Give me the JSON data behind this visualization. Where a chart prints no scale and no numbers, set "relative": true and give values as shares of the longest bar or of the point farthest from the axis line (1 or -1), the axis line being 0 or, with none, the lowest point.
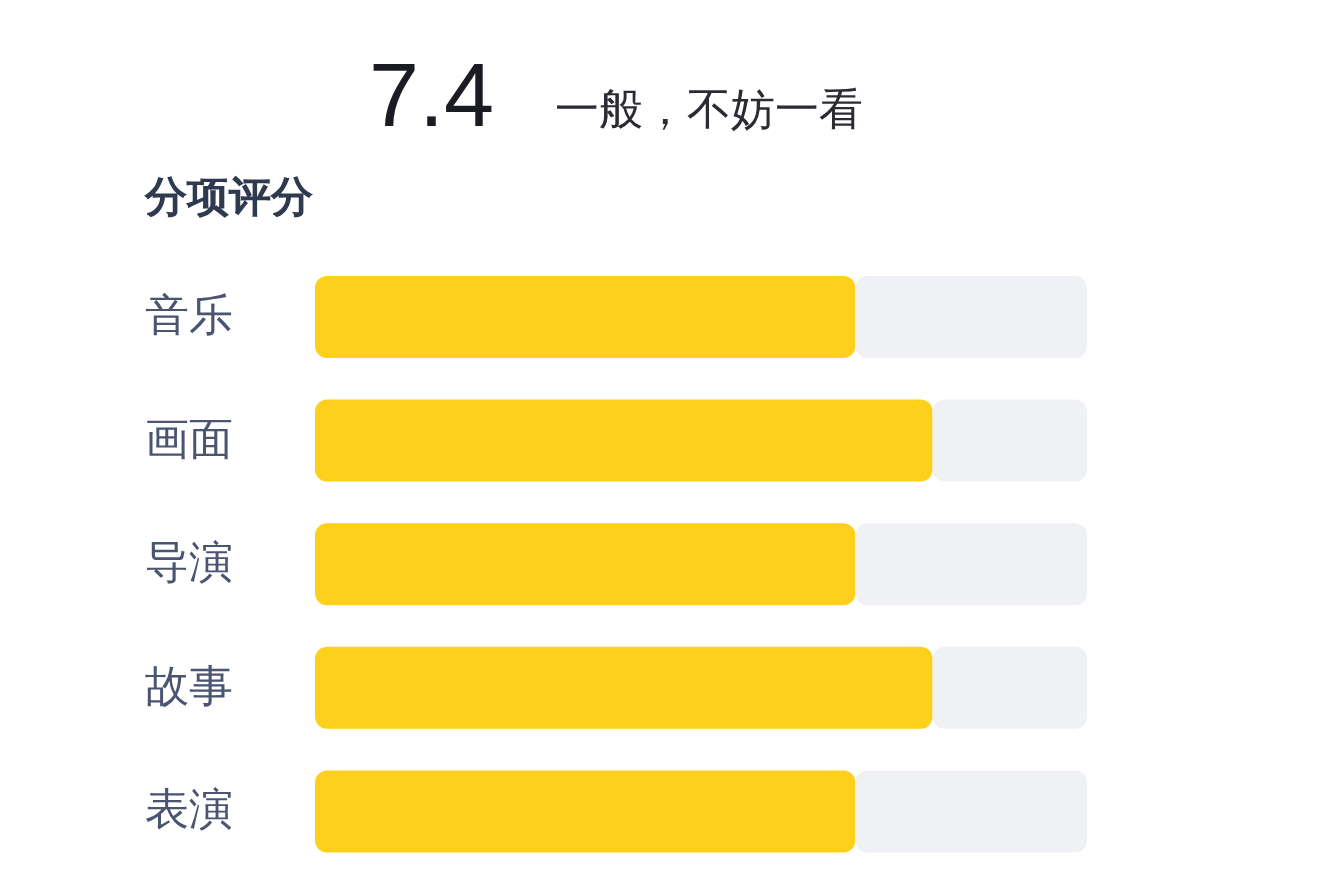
{
  "chart_data": {
    "type": "bar",
    "orientation": "horizontal",
    "stacked": true,
    "relative": true,
    "title": "7.4",
    "subtitle": "一般，不妨一看",
    "annotations": [
      "分项评分"
    ],
    "categories": [
      "音乐",
      "画面",
      "导演",
      "故事",
      "表演"
    ],
    "series": [
      {
        "color": "#fed01c",
        "values": [
          0.7,
          0.8,
          0.7,
          0.8,
          0.7
        ]
      },
      {
        "color": "#eff1f5",
        "values": [
          0.3,
          0.2,
          0.3,
          0.2,
          0.3
        ]
      }
    ]
  }
}
